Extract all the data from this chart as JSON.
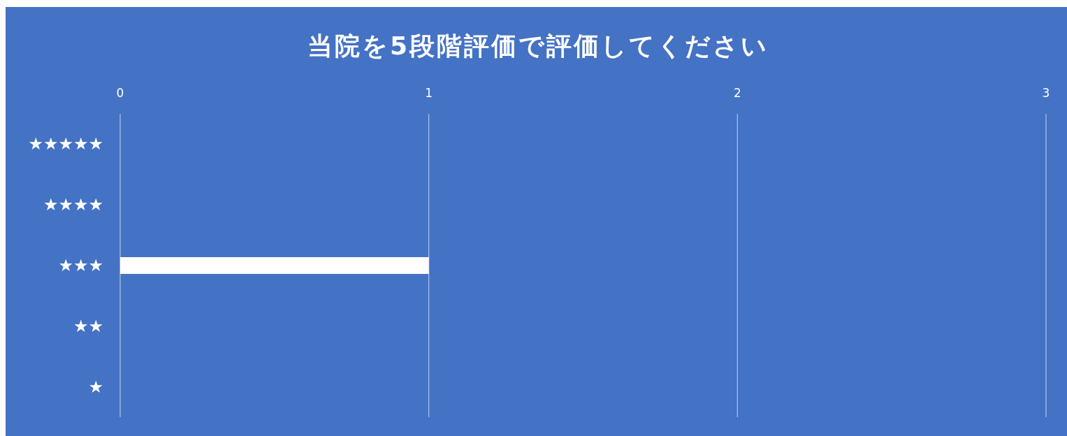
{
  "chart_data": {
    "type": "bar",
    "orientation": "horizontal",
    "title": "当院を5段階評価で評価してください",
    "categories": [
      "★★★★★",
      "★★★★",
      "★★★",
      "★★",
      "★"
    ],
    "values": [
      0,
      0,
      1,
      0,
      0
    ],
    "color": "#ffffff",
    "xlim": [
      0,
      3
    ],
    "xticks": [
      0,
      1,
      2,
      3
    ],
    "grid": "x"
  }
}
